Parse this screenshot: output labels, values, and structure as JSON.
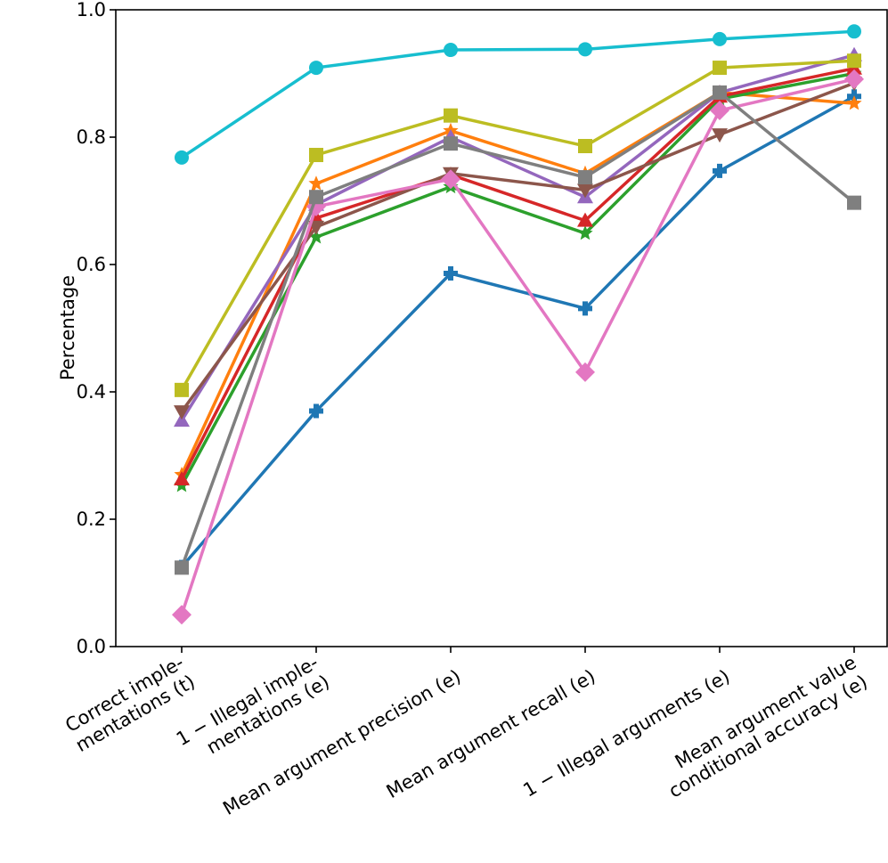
{
  "chart_data": {
    "type": "line",
    "title": "",
    "xlabel": "",
    "ylabel": "Percentage",
    "ylim": [
      0.0,
      1.0
    ],
    "yticks": [
      "0.0",
      "0.2",
      "0.4",
      "0.6",
      "0.8",
      "1.0"
    ],
    "grid": false,
    "categories": [
      [
        "Correct imple-",
        "mentations (t)"
      ],
      [
        "1 − Illegal imple-",
        "mentations (e)"
      ],
      [
        "Mean argument precision (e)"
      ],
      [
        "Mean argument recall (e)"
      ],
      [
        "1 − Illegal arguments (e)"
      ],
      [
        "Mean argument value",
        "conditional accuracy (e)"
      ]
    ],
    "series": [
      {
        "color": "#1f77b4",
        "marker": "plus-filled",
        "values": [
          0.125,
          0.37,
          0.586,
          0.531,
          0.747,
          0.864
        ]
      },
      {
        "color": "#ff7f0e",
        "marker": "star",
        "values": [
          0.27,
          0.727,
          0.81,
          0.743,
          0.87,
          0.853
        ]
      },
      {
        "color": "#2ca02c",
        "marker": "star",
        "values": [
          0.253,
          0.643,
          0.722,
          0.649,
          0.86,
          0.9
        ]
      },
      {
        "color": "#d62728",
        "marker": "triangle-up",
        "values": [
          0.263,
          0.673,
          0.741,
          0.669,
          0.864,
          0.908
        ]
      },
      {
        "color": "#9467bd",
        "marker": "triangle-up",
        "values": [
          0.355,
          0.694,
          0.8,
          0.706,
          0.87,
          0.929
        ]
      },
      {
        "color": "#8c564b",
        "marker": "triangle-down",
        "values": [
          0.369,
          0.659,
          0.743,
          0.717,
          0.804,
          0.885
        ]
      },
      {
        "color": "#e377c2",
        "marker": "diamond",
        "values": [
          0.05,
          0.691,
          0.734,
          0.431,
          0.842,
          0.891
        ]
      },
      {
        "color": "#7f7f7f",
        "marker": "square",
        "values": [
          0.124,
          0.706,
          0.79,
          0.737,
          0.87,
          0.697
        ]
      },
      {
        "color": "#bcbd22",
        "marker": "square",
        "values": [
          0.403,
          0.772,
          0.834,
          0.786,
          0.909,
          0.92
        ]
      },
      {
        "color": "#17becf",
        "marker": "circle",
        "values": [
          0.768,
          0.909,
          0.937,
          0.938,
          0.954,
          0.966
        ]
      }
    ]
  }
}
